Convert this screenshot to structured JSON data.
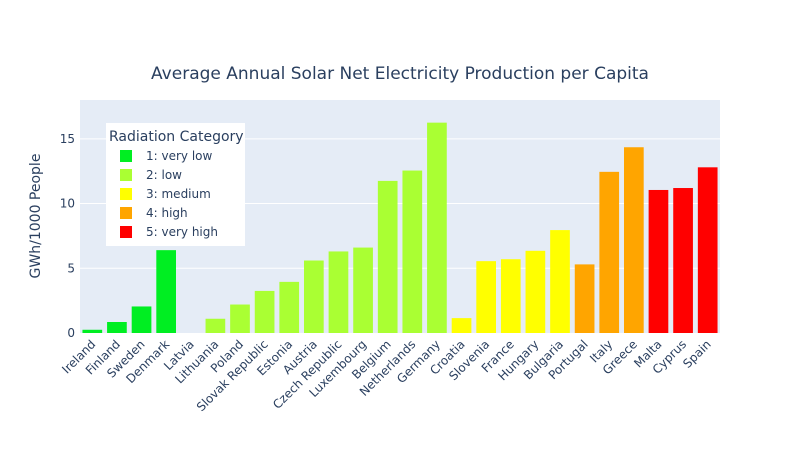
{
  "chart_data": {
    "type": "bar",
    "title": "Average Annual Solar Net Electricity Production per Capita",
    "xlabel": "",
    "ylabel": "GWh/1000 People",
    "ylim": [
      0,
      18
    ],
    "yticks": [
      0,
      5,
      10,
      15
    ],
    "grid": true,
    "legend": {
      "title": "Radiation Category",
      "placement": "top-left",
      "entries": [
        {
          "name": "1: very low",
          "color": "#00ee22"
        },
        {
          "name": "2: low",
          "color": "#aaff33"
        },
        {
          "name": "3: medium",
          "color": "#ffff00"
        },
        {
          "name": "4: high",
          "color": "#ffa500"
        },
        {
          "name": "5: very high",
          "color": "#ff0000"
        }
      ]
    },
    "bars": [
      {
        "category": "Ireland",
        "value": 0.25,
        "group": 0
      },
      {
        "category": "Finland",
        "value": 0.85,
        "group": 0
      },
      {
        "category": "Sweden",
        "value": 2.05,
        "group": 0
      },
      {
        "category": "Denmark",
        "value": 6.4,
        "group": 0
      },
      {
        "category": "Latvia",
        "value": 0.0,
        "group": 1
      },
      {
        "category": "Lithuania",
        "value": 1.1,
        "group": 1
      },
      {
        "category": "Poland",
        "value": 2.2,
        "group": 1
      },
      {
        "category": "Slovak Republic",
        "value": 3.25,
        "group": 1
      },
      {
        "category": "Estonia",
        "value": 3.95,
        "group": 1
      },
      {
        "category": "Austria",
        "value": 5.6,
        "group": 1
      },
      {
        "category": "Czech Republic",
        "value": 6.3,
        "group": 1
      },
      {
        "category": "Luxembourg",
        "value": 6.6,
        "group": 1
      },
      {
        "category": "Belgium",
        "value": 11.75,
        "group": 1
      },
      {
        "category": "Netherlands",
        "value": 12.55,
        "group": 1
      },
      {
        "category": "Germany",
        "value": 16.25,
        "group": 1
      },
      {
        "category": "Croatia",
        "value": 1.15,
        "group": 2
      },
      {
        "category": "Slovenia",
        "value": 5.55,
        "group": 2
      },
      {
        "category": "France",
        "value": 5.7,
        "group": 2
      },
      {
        "category": "Hungary",
        "value": 6.35,
        "group": 2
      },
      {
        "category": "Bulgaria",
        "value": 7.95,
        "group": 2
      },
      {
        "category": "Portugal",
        "value": 5.3,
        "group": 3
      },
      {
        "category": "Italy",
        "value": 12.45,
        "group": 3
      },
      {
        "category": "Greece",
        "value": 14.35,
        "group": 3
      },
      {
        "category": "Malta",
        "value": 11.05,
        "group": 4
      },
      {
        "category": "Cyprus",
        "value": 11.2,
        "group": 4
      },
      {
        "category": "Spain",
        "value": 12.8,
        "group": 4
      }
    ]
  }
}
